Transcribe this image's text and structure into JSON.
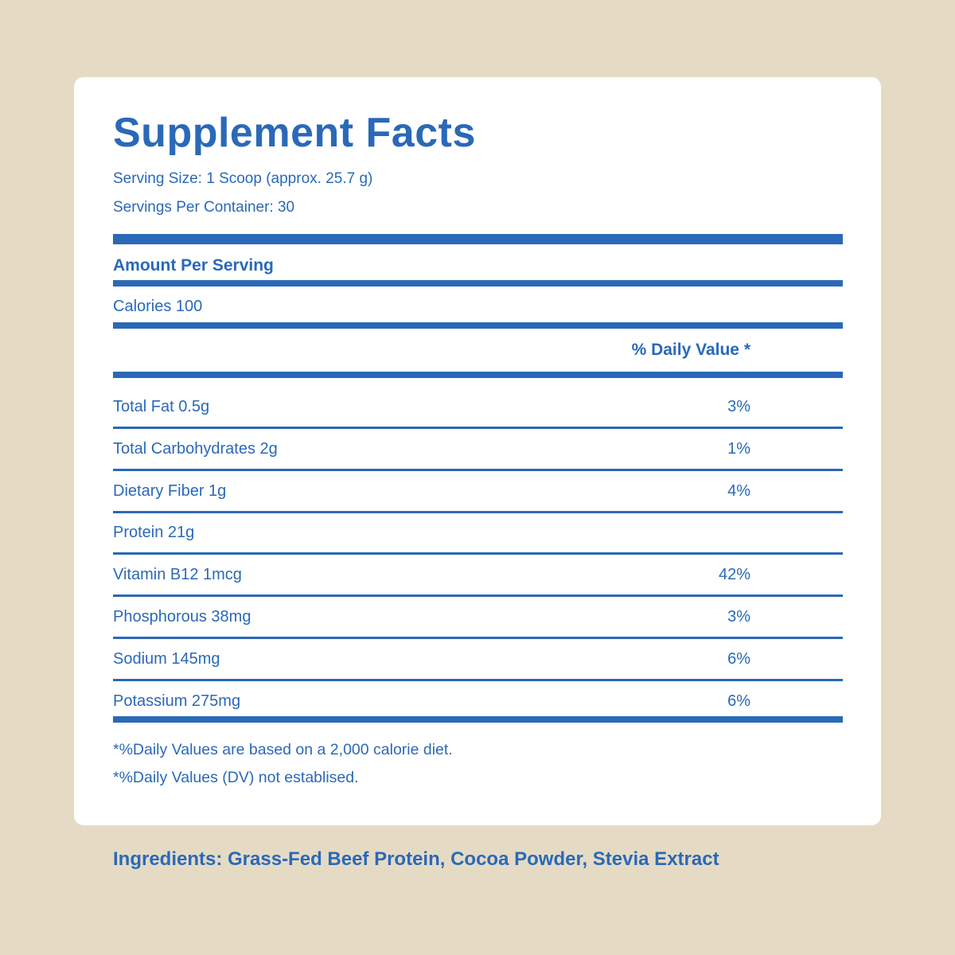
{
  "title": "Supplement Facts",
  "serving_size": "Serving Size: 1 Scoop (approx. 25.7 g)",
  "servings_per_container": "Servings Per Container: 30",
  "amount_per_serving": "Amount Per Serving",
  "calories": "Calories 100",
  "daily_value_header": "% Daily Value *",
  "rows": [
    {
      "label": "Total Fat 0.5g",
      "dv": "3%"
    },
    {
      "label": "Total Carbohydrates 2g",
      "dv": "1%"
    },
    {
      "label": "Dietary Fiber 1g",
      "dv": "4%"
    },
    {
      "label": "Protein 21g",
      "dv": ""
    },
    {
      "label": "Vitamin B12 1mcg",
      "dv": "42%"
    },
    {
      "label": "Phosphorous 38mg",
      "dv": "3%"
    },
    {
      "label": "Sodium 145mg",
      "dv": "6%"
    },
    {
      "label": "Potassium 275mg",
      "dv": "6%"
    }
  ],
  "footnotes": [
    "*%Daily Values are based on a 2,000 calorie diet.",
    "*%Daily Values (DV) not establised."
  ],
  "ingredients": "Ingredients: Grass-Fed Beef Protein, Cocoa Powder, Stevia Extract",
  "colors": {
    "accent": "#2a69b8",
    "background": "#e5dbc5",
    "card": "#ffffff"
  }
}
